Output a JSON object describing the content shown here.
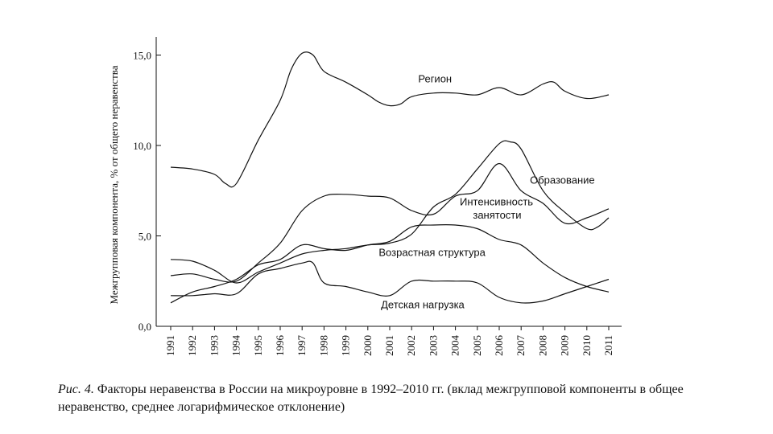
{
  "chart_data": {
    "type": "line",
    "ylabel": "Межгрупповая компонента, % от общего неравенства",
    "xlabel": "",
    "ylim": [
      0,
      16
    ],
    "y_ticks": [
      "0,0",
      "5,0",
      "10,0",
      "15,0"
    ],
    "y_tick_values": [
      0,
      5,
      10,
      15
    ],
    "categories": [
      "1991",
      "1992",
      "1993",
      "1994",
      "1995",
      "1996",
      "1997",
      "1998",
      "1999",
      "2000",
      "2001",
      "2002",
      "2003",
      "2004",
      "2005",
      "2006",
      "2007",
      "2008",
      "2009",
      "2010",
      "2011"
    ],
    "grid": false,
    "series": [
      {
        "name": "Регион",
        "x": [
          1991,
          1992,
          1993,
          1993.5,
          1994,
          1995,
          1996,
          1996.5,
          1997,
          1997.5,
          1998,
          1999,
          2000,
          2000.5,
          2001,
          2001.5,
          2002,
          2003,
          2004,
          2005,
          2006,
          2007,
          2008,
          2008.5,
          2009,
          2010,
          2011
        ],
        "values": [
          8.8,
          8.7,
          8.4,
          7.9,
          7.9,
          10.3,
          12.5,
          14.2,
          15.1,
          15.0,
          14.1,
          13.5,
          12.8,
          12.4,
          12.2,
          12.3,
          12.7,
          12.9,
          12.9,
          12.8,
          13.2,
          12.8,
          13.4,
          13.5,
          13.0,
          12.6,
          12.8
        ]
      },
      {
        "name": "Образование",
        "x": [
          1991,
          1992,
          1993,
          1994,
          1995,
          1996,
          1997,
          1998,
          1999,
          2000,
          2001,
          2002,
          2003,
          2004,
          2005,
          2006,
          2006.5,
          2007,
          2008,
          2009,
          2010,
          2010.5,
          2011
        ],
        "values": [
          3.7,
          3.6,
          3.1,
          2.4,
          3.0,
          3.5,
          4.0,
          4.2,
          4.3,
          4.5,
          4.6,
          5.1,
          6.6,
          7.3,
          8.7,
          10.1,
          10.2,
          9.8,
          7.5,
          6.3,
          5.4,
          5.5,
          6.0
        ]
      },
      {
        "name": "Интенсивность занятости",
        "x": [
          1991,
          1992,
          1993,
          1994,
          1995,
          1996,
          1997,
          1998,
          1999,
          2000,
          2001,
          2002,
          2003,
          2004,
          2005,
          2006,
          2007,
          2008,
          2009,
          2010,
          2011
        ],
        "values": [
          2.8,
          2.9,
          2.6,
          2.5,
          3.5,
          4.6,
          6.4,
          7.2,
          7.3,
          7.2,
          7.1,
          6.4,
          6.2,
          7.2,
          7.5,
          9.0,
          7.5,
          6.8,
          5.7,
          6.0,
          6.5
        ]
      },
      {
        "name": "Возрастная структура",
        "x": [
          1991,
          1992,
          1993,
          1994,
          1995,
          1996,
          1997,
          1998,
          1999,
          2000,
          2001,
          2002,
          2003,
          2004,
          2005,
          2006,
          2007,
          2008,
          2009,
          2010,
          2011
        ],
        "values": [
          1.3,
          1.9,
          2.2,
          2.6,
          3.4,
          3.7,
          4.5,
          4.3,
          4.2,
          4.5,
          4.7,
          5.5,
          5.6,
          5.6,
          5.4,
          4.8,
          4.5,
          3.5,
          2.7,
          2.2,
          1.9
        ]
      },
      {
        "name": "Детская нагрузка",
        "x": [
          1991,
          1992,
          1993,
          1994,
          1995,
          1996,
          1997,
          1997.5,
          1998,
          1999,
          2000,
          2001,
          2002,
          2003,
          2004,
          2005,
          2006,
          2007,
          2008,
          2009,
          2010,
          2011
        ],
        "values": [
          1.7,
          1.7,
          1.8,
          1.8,
          2.9,
          3.2,
          3.5,
          3.5,
          2.4,
          2.2,
          1.9,
          1.7,
          2.5,
          2.5,
          2.5,
          2.4,
          1.6,
          1.3,
          1.4,
          1.8,
          2.2,
          2.6
        ]
      }
    ],
    "series_labels": [
      {
        "text": "Регион",
        "x": 2002.3,
        "y": 13.5
      },
      {
        "text": "Образование",
        "x": 2007.4,
        "y": 7.9
      },
      {
        "text": "Интенсивность",
        "x": 2004.2,
        "y": 6.7
      },
      {
        "text": "занятости",
        "x": 2004.8,
        "y": 5.95
      },
      {
        "text": "Возрастная структура",
        "x": 2000.5,
        "y": 3.9
      },
      {
        "text": "Детская нагрузка",
        "x": 2000.6,
        "y": 1.0
      }
    ]
  },
  "caption": {
    "figure_number": "Рис. 4.",
    "text": " Факторы неравенства в России на микроуровне в 1992–2010 гг. (вклад межгрупповой компоненты в общее неравенство, среднее логарифмическое отклонение)"
  }
}
